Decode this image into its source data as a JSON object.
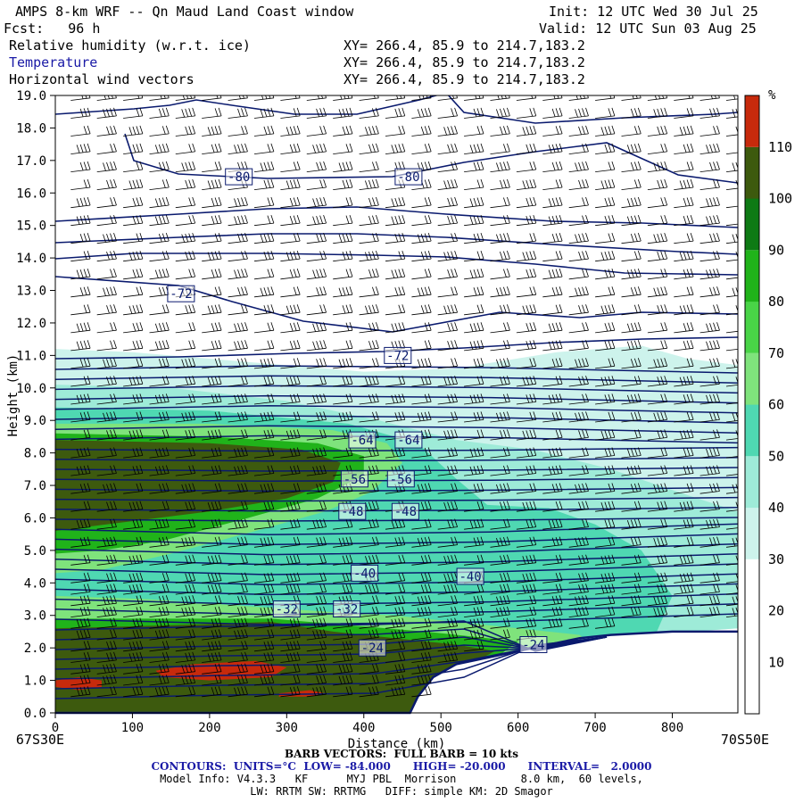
{
  "header": {
    "title": "AMPS 8-km WRF -- Qn Maud Land Coast window",
    "init": "Init: 12 UTC Wed 30 Jul 25",
    "fcst": "Fcst:   96 h",
    "valid": "Valid: 12 UTC Sun 03 Aug 25",
    "fields": [
      {
        "label": "Relative humidity (w.r.t. ice)",
        "xy": "XY= 266.4, 85.9 to 214.7,183.2"
      },
      {
        "label": "Temperature",
        "xy": "XY= 266.4, 85.9 to 214.7,183.2"
      },
      {
        "label": "Horizontal wind vectors",
        "xy": "XY= 266.4, 85.9 to 214.7,183.2"
      }
    ]
  },
  "footer": {
    "left_coord": "67S30E",
    "right_coord": "70S50E",
    "barb": "BARB VECTORS:  FULL BARB = 10 kts",
    "contours": "CONTOURS:  UNITS=°C  LOW= -84.000      HIGH= -20.000      INTERVAL=   2.0000",
    "model": "Model Info: V4.3.3   KF      MYJ PBL  Morrison          8.0 km,  60 levels,",
    "physics": "LW: RRTM SW: RRTMG   DIFF: simple KM: 2D Smagor"
  },
  "colors": {
    "contour": "#0a1a6e",
    "terrain": "#0a1a6e",
    "barb": "#000000"
  },
  "chart_data": {
    "type": "heatmap",
    "title": "",
    "xlabel": "Distance (km)",
    "ylabel": "Height (km)",
    "xlim": [
      0,
      885
    ],
    "ylim": [
      0,
      19
    ],
    "x_ticks": [
      0,
      100,
      200,
      300,
      400,
      500,
      600,
      700,
      800
    ],
    "y_ticks": [
      0.0,
      1.0,
      2.0,
      3.0,
      4.0,
      5.0,
      6.0,
      7.0,
      8.0,
      9.0,
      10.0,
      11.0,
      12.0,
      13.0,
      14.0,
      15.0,
      16.0,
      17.0,
      18.0,
      19.0
    ],
    "colorbar": {
      "unit": "%",
      "ticks": [
        10,
        20,
        30,
        40,
        50,
        60,
        70,
        80,
        90,
        100,
        110
      ],
      "bins": [
        {
          "from": 0,
          "to": 30,
          "color": "#ffffff"
        },
        {
          "from": 30,
          "to": 40,
          "color": "#cdf3ec"
        },
        {
          "from": 40,
          "to": 50,
          "color": "#9eebd8"
        },
        {
          "from": 50,
          "to": 60,
          "color": "#4fd8b2"
        },
        {
          "from": 60,
          "to": 70,
          "color": "#7fe37c"
        },
        {
          "from": 70,
          "to": 80,
          "color": "#49d447"
        },
        {
          "from": 80,
          "to": 90,
          "color": "#20b31a"
        },
        {
          "from": 90,
          "to": 100,
          "color": "#0e7a14"
        },
        {
          "from": 100,
          "to": 110,
          "color": "#3d5a0e"
        },
        {
          "from": 110,
          "to": 120,
          "color": "#c72a0c"
        }
      ]
    },
    "rh_regions": [
      {
        "level": 30,
        "points": [
          [
            0,
            11.2
          ],
          [
            100,
            11.1
          ],
          [
            250,
            10.8
          ],
          [
            400,
            10.5
          ],
          [
            520,
            10.6
          ],
          [
            650,
            11.1
          ],
          [
            760,
            11.3
          ],
          [
            820,
            10.9
          ],
          [
            885,
            10.7
          ],
          [
            885,
            2.6
          ],
          [
            760,
            2.4
          ],
          [
            680,
            2.3
          ],
          [
            620,
            2.0
          ],
          [
            560,
            1.5
          ],
          [
            500,
            1.0
          ],
          [
            470,
            0
          ],
          [
            0,
            0
          ]
        ]
      },
      {
        "level": 40,
        "points": [
          [
            0,
            10.1
          ],
          [
            150,
            10.0
          ],
          [
            300,
            9.6
          ],
          [
            420,
            9.0
          ],
          [
            520,
            8.4
          ],
          [
            620,
            8.1
          ],
          [
            720,
            7.5
          ],
          [
            820,
            6.7
          ],
          [
            885,
            6.2
          ],
          [
            885,
            2.6
          ],
          [
            760,
            2.4
          ],
          [
            680,
            2.3
          ],
          [
            620,
            2.0
          ],
          [
            560,
            1.5
          ],
          [
            500,
            1.0
          ],
          [
            470,
            0
          ],
          [
            0,
            0
          ]
        ]
      },
      {
        "level": 50,
        "points": [
          [
            0,
            9.4
          ],
          [
            200,
            9.3
          ],
          [
            380,
            8.9
          ],
          [
            470,
            8.3
          ],
          [
            520,
            7.2
          ],
          [
            560,
            6.4
          ],
          [
            640,
            6.3
          ],
          [
            700,
            5.8
          ],
          [
            760,
            5.0
          ],
          [
            800,
            3.6
          ],
          [
            780,
            2.5
          ],
          [
            680,
            2.3
          ],
          [
            620,
            2.0
          ],
          [
            560,
            1.5
          ],
          [
            500,
            1.0
          ],
          [
            470,
            0
          ],
          [
            0,
            0
          ]
        ]
      },
      {
        "level": 60,
        "points": [
          [
            0,
            8.9
          ],
          [
            200,
            8.9
          ],
          [
            360,
            8.7
          ],
          [
            430,
            8.3
          ],
          [
            450,
            7.7
          ],
          [
            410,
            6.8
          ],
          [
            350,
            6.2
          ],
          [
            260,
            5.6
          ],
          [
            150,
            4.9
          ],
          [
            60,
            4.4
          ],
          [
            0,
            4.3
          ]
        ]
      },
      {
        "level": 80,
        "points": [
          [
            0,
            8.6
          ],
          [
            200,
            8.5
          ],
          [
            340,
            8.3
          ],
          [
            400,
            7.9
          ],
          [
            400,
            7.3
          ],
          [
            340,
            6.6
          ],
          [
            250,
            6.0
          ],
          [
            140,
            5.3
          ],
          [
            60,
            5.0
          ],
          [
            0,
            4.9
          ]
        ]
      },
      {
        "level": 100,
        "points": [
          [
            0,
            8.4
          ],
          [
            200,
            8.3
          ],
          [
            320,
            8.1
          ],
          [
            370,
            7.7
          ],
          [
            360,
            7.1
          ],
          [
            300,
            6.6
          ],
          [
            200,
            6.2
          ],
          [
            100,
            5.9
          ],
          [
            0,
            5.6
          ]
        ]
      },
      {
        "level": 60,
        "points": [
          [
            0,
            3.6
          ],
          [
            120,
            3.5
          ],
          [
            240,
            3.3
          ],
          [
            360,
            3.1
          ],
          [
            440,
            3.0
          ],
          [
            520,
            2.8
          ],
          [
            600,
            2.6
          ],
          [
            680,
            2.4
          ],
          [
            690,
            2.2
          ],
          [
            620,
            2.0
          ],
          [
            560,
            1.5
          ],
          [
            500,
            1.0
          ],
          [
            470,
            0
          ],
          [
            0,
            0
          ]
        ]
      },
      {
        "level": 80,
        "points": [
          [
            0,
            2.9
          ],
          [
            150,
            2.9
          ],
          [
            280,
            2.9
          ],
          [
            380,
            2.7
          ],
          [
            480,
            2.5
          ],
          [
            560,
            2.3
          ],
          [
            600,
            2.2
          ],
          [
            560,
            1.5
          ],
          [
            500,
            1.0
          ],
          [
            470,
            0
          ],
          [
            0,
            0
          ]
        ]
      },
      {
        "level": 100,
        "points": [
          [
            0,
            2.6
          ],
          [
            150,
            2.7
          ],
          [
            280,
            2.8
          ],
          [
            360,
            2.5
          ],
          [
            440,
            2.3
          ],
          [
            520,
            2.1
          ],
          [
            570,
            1.9
          ],
          [
            500,
            1.0
          ],
          [
            470,
            0
          ],
          [
            0,
            0
          ]
        ]
      },
      {
        "level": 110,
        "points": [
          [
            0,
            1.0
          ],
          [
            30,
            1.1
          ],
          [
            60,
            1.0
          ],
          [
            60,
            0.8
          ],
          [
            30,
            0.7
          ],
          [
            0,
            0.8
          ]
        ]
      },
      {
        "level": 110,
        "points": [
          [
            130,
            1.3
          ],
          [
            180,
            1.5
          ],
          [
            260,
            1.6
          ],
          [
            300,
            1.4
          ],
          [
            280,
            1.1
          ],
          [
            200,
            1.0
          ],
          [
            140,
            1.1
          ]
        ]
      },
      {
        "level": 110,
        "points": [
          [
            290,
            0.6
          ],
          [
            330,
            0.7
          ],
          [
            350,
            0.6
          ],
          [
            330,
            0.5
          ],
          [
            290,
            0.5
          ]
        ]
      }
    ],
    "terrain_km": {
      "x": [
        0,
        460,
        470,
        490,
        520,
        560,
        600,
        640,
        680,
        720,
        760,
        800,
        885
      ],
      "y": [
        0,
        0,
        0.5,
        1.1,
        1.5,
        1.7,
        1.9,
        2.1,
        2.3,
        2.4,
        2.45,
        2.5,
        2.5
      ]
    },
    "temperature_labels": [
      {
        "value": "-80",
        "x": 238,
        "y": 16.5
      },
      {
        "value": "-80",
        "x": 458,
        "y": 16.5
      },
      {
        "value": "-72",
        "x": 163,
        "y": 12.9
      },
      {
        "value": "-72",
        "x": 444,
        "y": 11.0
      },
      {
        "value": "-64",
        "x": 398,
        "y": 8.4
      },
      {
        "value": "-64",
        "x": 458,
        "y": 8.4
      },
      {
        "value": "-56",
        "x": 388,
        "y": 7.2
      },
      {
        "value": "-56",
        "x": 448,
        "y": 7.2
      },
      {
        "value": "-48",
        "x": 385,
        "y": 6.2
      },
      {
        "value": "-48",
        "x": 454,
        "y": 6.2
      },
      {
        "value": "-40",
        "x": 401,
        "y": 4.3
      },
      {
        "value": "-40",
        "x": 538,
        "y": 4.2
      },
      {
        "value": "-32",
        "x": 300,
        "y": 3.2
      },
      {
        "value": "-32",
        "x": 378,
        "y": 3.2
      },
      {
        "value": "-24",
        "x": 411,
        "y": 2.0
      },
      {
        "value": "-24",
        "x": 620,
        "y": 2.1
      }
    ]
  }
}
